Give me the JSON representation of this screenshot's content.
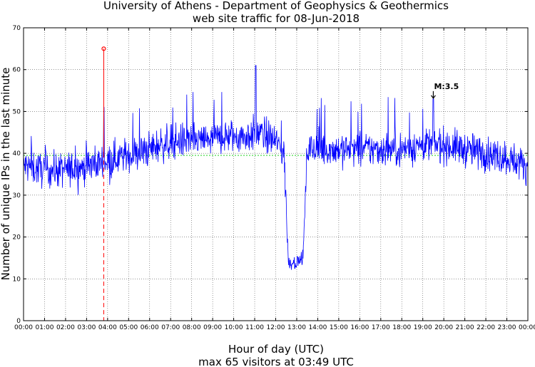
{
  "chart_data": {
    "type": "line",
    "title": "University of Athens - Department of Geophysics & Geothermics",
    "subtitle": "web site traffic for 08-Jun-2018",
    "xlabel": "Hour of day (UTC)",
    "xlabel2": "max 65 visitors at 03:49 UTC",
    "ylabel": "Number of unique IPs in the last minute",
    "ylim": [
      0,
      70
    ],
    "xlim": [
      0,
      24
    ],
    "grid": true,
    "y_ticks": [
      "0",
      "10",
      "20",
      "30",
      "40",
      "50",
      "60",
      "70"
    ],
    "x_ticks": [
      "00:00",
      "01:00",
      "02:00",
      "03:00",
      "04:00",
      "05:00",
      "06:00",
      "07:00",
      "08:00",
      "09:00",
      "10:00",
      "11:00",
      "12:00",
      "13:00",
      "14:00",
      "15:00",
      "16:00",
      "17:00",
      "18:00",
      "19:00",
      "20:00",
      "21:00",
      "22:00",
      "23:00",
      "00:00"
    ],
    "mean_level": 39.5,
    "max_marker": {
      "hour": 3.817,
      "value": 65
    },
    "event_annotation": {
      "label": "M:3.5",
      "hour": 19.5,
      "value": 53
    },
    "traffic_profile": {
      "x": [
        0,
        1,
        2,
        3,
        3.8,
        4.5,
        5.5,
        6.5,
        7.5,
        8.5,
        9.5,
        10.5,
        11.2,
        12,
        12.4,
        12.6,
        13.0,
        13.3,
        13.5,
        14,
        15,
        16,
        17,
        18,
        19,
        20,
        21,
        22,
        23,
        24
      ],
      "y": [
        37,
        36,
        36,
        37,
        38,
        39,
        40,
        42,
        43,
        43,
        44,
        44,
        45,
        43,
        40,
        14,
        14,
        15,
        41,
        41,
        41,
        41,
        41,
        41,
        42,
        42,
        41,
        40,
        39,
        37
      ]
    },
    "series": [
      {
        "values_note": "",
        "color": "#0000ff"
      }
    ]
  },
  "colors": {
    "series": "#0000ff",
    "mean": "#00cc00",
    "max_marker": "#ff0000",
    "grid": "#555555"
  }
}
